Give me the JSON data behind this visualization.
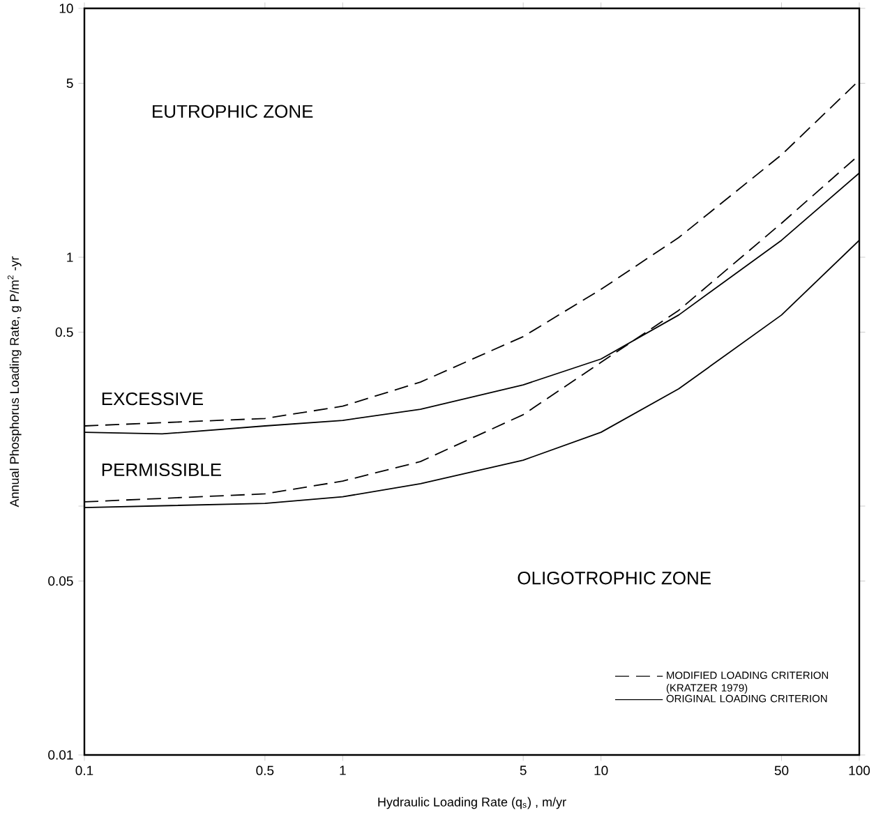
{
  "chart_data": {
    "type": "line",
    "xlabel": "Hydraulic Loading Rate (q$_{s}$) , m/yr",
    "ylabel": "Annual Phosphorus Loading Rate, g P/m$^{2}$ -yr",
    "log": "xy",
    "xlim": [
      0.1,
      100
    ],
    "ylim": [
      0.01,
      10
    ],
    "xticks": [
      0.1,
      0.5,
      1,
      5,
      10,
      50,
      100
    ],
    "yticks": [
      0.01,
      0.05,
      {
        "value": 0.1,
        "label": null
      },
      0.5,
      1,
      5,
      10
    ],
    "legend": "bottom right",
    "marker": "none",
    "series": [
      {
        "name": "MODIFIED LOADING CRITERION (KRATZER 1979)",
        "color": "#000000",
        "line_style": "dashed",
        "x": [
          0.1,
          0.5,
          1,
          2,
          5,
          10,
          20,
          50,
          100
        ],
        "values": [
          0.21,
          0.225,
          0.252,
          0.315,
          0.48,
          0.743,
          1.2,
          2.58,
          5.14
        ]
      },
      {
        "color": "#000000",
        "line_style": "dashed",
        "x": [
          0.1,
          0.5,
          1,
          2,
          5,
          10,
          20,
          50,
          100
        ],
        "values": [
          0.104,
          0.112,
          0.126,
          0.151,
          0.233,
          0.378,
          0.612,
          1.37,
          2.58
        ]
      },
      {
        "name": "ORIGINAL LOADING CRITERION",
        "color": "#000000",
        "line_style": "solid",
        "x": [
          0.1,
          0.2,
          0.5,
          1,
          2,
          5,
          10,
          20,
          50,
          100
        ],
        "values": [
          0.198,
          0.195,
          0.21,
          0.221,
          0.245,
          0.307,
          0.39,
          0.586,
          1.17,
          2.18
        ]
      },
      {
        "color": "#000000",
        "line_style": "solid",
        "x": [
          0.1,
          0.5,
          1,
          2,
          5,
          10,
          20,
          50,
          100
        ],
        "values": [
          0.0987,
          0.1025,
          0.109,
          0.123,
          0.153,
          0.198,
          0.296,
          0.586,
          1.17
        ]
      }
    ],
    "annotations": [
      "EUTROPHIC  ZONE",
      "EXCESSIVE",
      "PERMISSIBLE",
      "OLIGOTROPHIC  ZONE"
    ]
  }
}
